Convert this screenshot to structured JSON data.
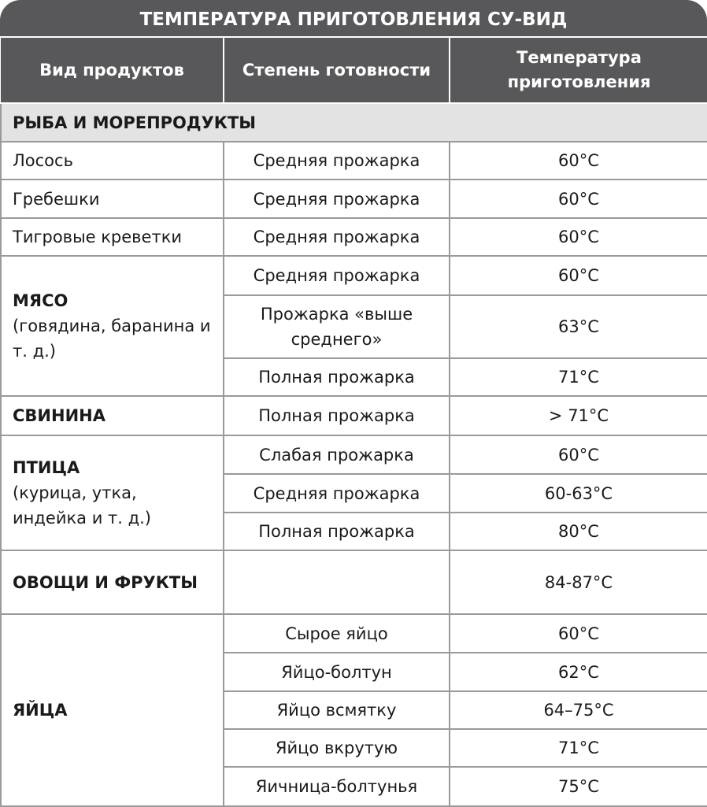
{
  "title": "ТЕМПЕРАТУРА ПРИГОТОВЛЕНИЯ СУ-ВИД",
  "headers": [
    "Вид продуктов",
    "Степень готовности",
    "Температура приготовления"
  ],
  "fish": {
    "label": "РЫБА И МОРЕПРОДУКТЫ",
    "rows": [
      {
        "product": "Лосось",
        "doneness": "Средняя прожарка",
        "temp": "60°C"
      },
      {
        "product": "Гребешки",
        "doneness": "Средняя прожарка",
        "temp": "60°C"
      },
      {
        "product": "Тигровые креветки",
        "doneness": "Средняя прожарка",
        "temp": "60°C"
      }
    ]
  },
  "meat": {
    "label": "МЯСО",
    "sub": "(говядина, баранина и т. д.)",
    "rows": [
      {
        "doneness": "Средняя прожарка",
        "temp": "60°C"
      },
      {
        "doneness": "Прожарка «выше среднего»",
        "temp": "63°C"
      },
      {
        "doneness": "Полная прожарка",
        "temp": "71°C"
      }
    ]
  },
  "pork": {
    "label": "СВИНИНА",
    "doneness": "Полная прожарка",
    "temp": "> 71°C"
  },
  "poultry": {
    "label": "ПТИЦА",
    "sub": "(курица, утка, индейка и т. д.)",
    "rows": [
      {
        "doneness": "Слабая прожарка",
        "temp": "60°C"
      },
      {
        "doneness": "Средняя прожарка",
        "temp": "60-63°C"
      },
      {
        "doneness": "Полная прожарка",
        "temp": "80°C"
      }
    ]
  },
  "veg": {
    "label": "ОВОЩИ И ФРУКТЫ",
    "doneness": "",
    "temp": "84-87°C"
  },
  "eggs": {
    "label": "ЯЙЦА",
    "rows": [
      {
        "doneness": "Сырое яйцо",
        "temp": "60°C"
      },
      {
        "doneness": "Яйцо-болтун",
        "temp": "62°C"
      },
      {
        "doneness": "Яйцо всмятку",
        "temp": "64–75°C"
      },
      {
        "doneness": "Яйцо вкрутую",
        "temp": "71°C"
      },
      {
        "doneness": "Яичница-болтунья",
        "temp": "75°C"
      }
    ]
  },
  "colors": {
    "header": "#58585a",
    "category": "#e3e3e3",
    "border": "#9a9a9a"
  }
}
